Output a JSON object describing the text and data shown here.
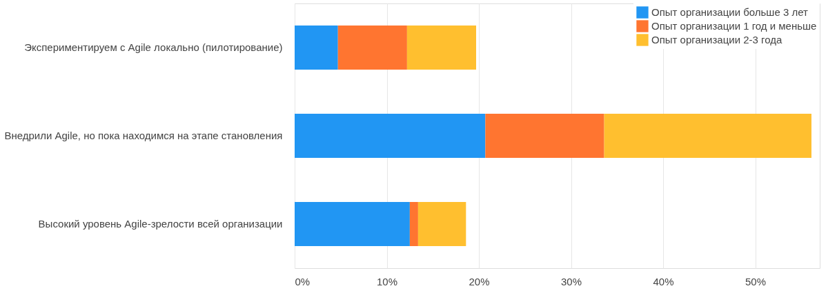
{
  "chart_data": {
    "type": "bar",
    "orientation": "horizontal",
    "stacked": true,
    "categories": [
      "Экспериментируем с Agile локально (пилотирование)",
      "Внедрили Agile, но пока находимся на этапе становления",
      "Высокий уровень Agile-зрелости всей организации"
    ],
    "series": [
      {
        "name": "Опыт организации больше 3 лет",
        "color": "#2196f3",
        "values": [
          4.7,
          20.7,
          12.5
        ]
      },
      {
        "name": "Опыт организации 1 год и меньше",
        "color": "#ff7530",
        "values": [
          7.5,
          12.9,
          0.9
        ]
      },
      {
        "name": "Опыт организации 2-3 года",
        "color": "#ffbf2f",
        "values": [
          7.5,
          22.5,
          5.2
        ]
      }
    ],
    "xlim": [
      0,
      57
    ],
    "xticks": [
      {
        "value": 0,
        "label": "0%"
      },
      {
        "value": 10,
        "label": "10%"
      },
      {
        "value": 20,
        "label": "20%"
      },
      {
        "value": 30,
        "label": "30%"
      },
      {
        "value": 40,
        "label": "40%"
      },
      {
        "value": 50,
        "label": "50%"
      }
    ],
    "grid": "x",
    "legend": "top right"
  }
}
